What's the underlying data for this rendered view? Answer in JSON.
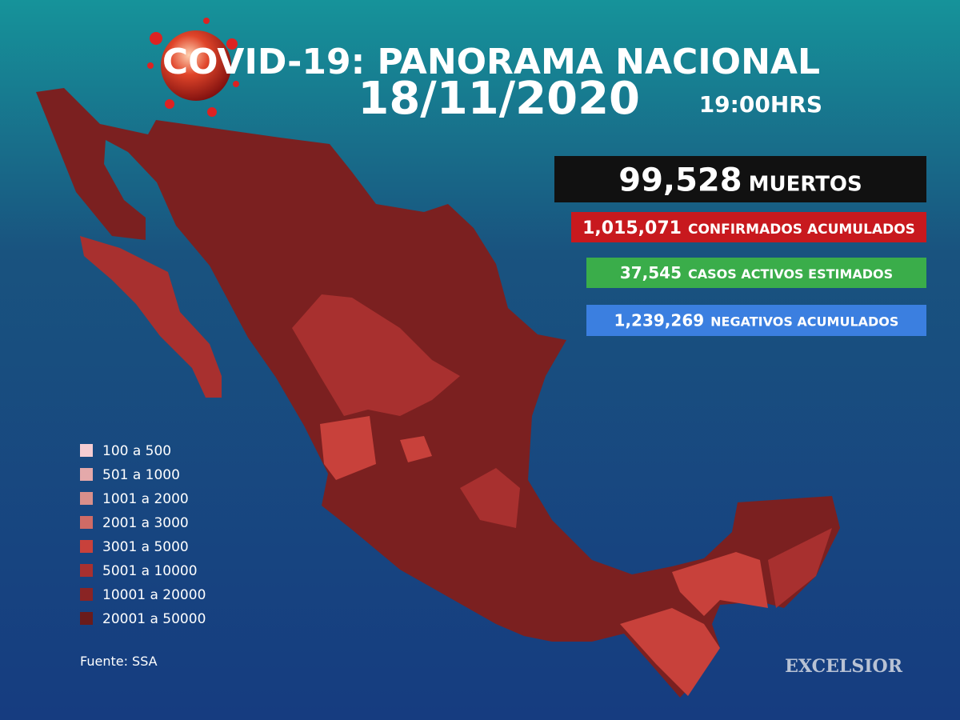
{
  "header": {
    "title": "COVID-19: PANORAMA NACIONAL",
    "date": "18/11/2020",
    "time": "19:00HRS"
  },
  "stats": [
    {
      "value": "99,528",
      "label": "MUERTOS",
      "color": "#111111"
    },
    {
      "value": "1,015,071",
      "label": "CONFIRMADOS ACUMULADOS",
      "color": "#c8191e"
    },
    {
      "value": "37,545",
      "label": "CASOS ACTIVOS ESTIMADOS",
      "color": "#3aad4a"
    },
    {
      "value": "1,239,269",
      "label": "NEGATIVOS ACUMULADOS",
      "color": "#3b7fe0"
    }
  ],
  "legend": [
    {
      "label": "100 a 500",
      "color": "#f5cdd2"
    },
    {
      "label": "501 a 1000",
      "color": "#e4a9aa"
    },
    {
      "label": "1001 a 2000",
      "color": "#d98f8b"
    },
    {
      "label": "2001 a 3000",
      "color": "#cf6b66"
    },
    {
      "label": "3001 a 5000",
      "color": "#c8413b"
    },
    {
      "label": "5001 a 10000",
      "color": "#a8302f"
    },
    {
      "label": "10001 a 20000",
      "color": "#8a2424"
    },
    {
      "label": "20001 a 50000",
      "color": "#6a1b1b"
    }
  ],
  "source": "Fuente: SSA",
  "brand": "EXCELSIOR"
}
